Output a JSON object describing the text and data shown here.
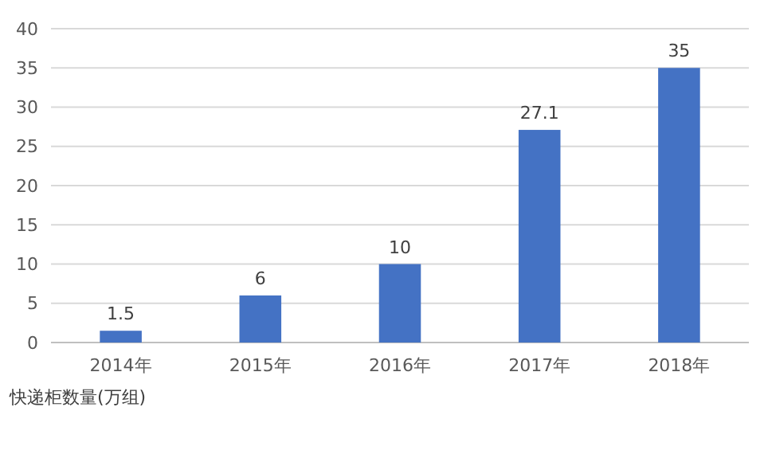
{
  "chart_data": {
    "type": "bar",
    "categories": [
      "2014年",
      "2015年",
      "2016年",
      "2017年",
      "2018年"
    ],
    "values": [
      1.5,
      6,
      10,
      27.1,
      35
    ],
    "color": "#4472c4",
    "ylim": [
      0,
      40
    ],
    "yticks": [
      0,
      5,
      10,
      15,
      20,
      25,
      30,
      35,
      40
    ],
    "grid": "y",
    "data_labels": true,
    "xlabel": "快递柜数量(万组)"
  }
}
